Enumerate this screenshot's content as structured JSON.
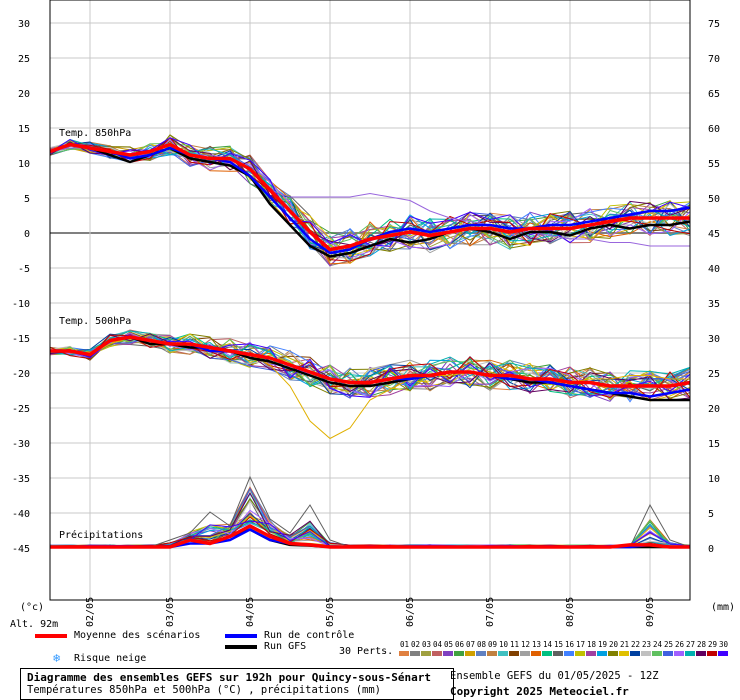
{
  "chart_data": {
    "type": "line",
    "left_ticks": [
      "30",
      "25",
      "20",
      "15",
      "10",
      "5",
      "0",
      "-5",
      "-10",
      "-15",
      "-20",
      "-25",
      "-30",
      "-35",
      "-40",
      "-45"
    ],
    "right_ticks": [
      "75",
      "70",
      "65",
      "60",
      "55",
      "50",
      "45",
      "40",
      "35",
      "30",
      "25",
      "20",
      "15",
      "10",
      "5",
      "0"
    ],
    "x_ticks": [
      "02/05",
      "03/05",
      "04/05",
      "05/05",
      "06/05",
      "07/05",
      "08/05",
      "09/05"
    ],
    "left_unit": "(°c)",
    "right_unit": "(mm)",
    "altitude": "Alt. 92m",
    "panel_labels": {
      "t850": "Temp. 850hPa",
      "t500": "Temp. 500hPa",
      "precip": "Précipitations"
    },
    "x_hours": [
      0,
      6,
      12,
      18,
      24,
      30,
      36,
      42,
      48,
      54,
      60,
      66,
      72,
      78,
      84,
      90,
      96,
      102,
      108,
      114,
      120,
      126,
      132,
      138,
      144,
      150,
      156,
      162,
      168,
      174,
      180,
      186,
      192
    ],
    "t850_mean": [
      11.5,
      12.5,
      12,
      11.5,
      11,
      11.5,
      12.5,
      11,
      10.5,
      10.5,
      9,
      6,
      3,
      0,
      -2.5,
      -2,
      -1,
      -0.5,
      0,
      -0.5,
      0,
      0.5,
      0.5,
      0,
      0.5,
      0.5,
      0.5,
      1,
      1.5,
      2,
      2,
      2,
      2
    ],
    "t850_control": [
      11.5,
      12.5,
      12,
      11.5,
      10.5,
      11,
      12,
      11,
      10.5,
      10,
      8,
      5,
      2,
      -1,
      -3,
      -2.5,
      -1,
      0,
      0.5,
      0,
      0.5,
      1,
      1,
      0.5,
      0.5,
      1,
      1,
      1.5,
      2,
      2.5,
      3,
      3,
      3.5
    ],
    "t850_gfs": [
      11.5,
      12.5,
      12,
      11,
      10,
      11,
      12,
      10.5,
      10,
      9.5,
      8,
      4,
      1,
      -2,
      -3.5,
      -3,
      -2,
      -1,
      -1.5,
      -1,
      0,
      0.5,
      0,
      -1,
      0,
      0,
      -0.5,
      0.5,
      1,
      0.5,
      1,
      1,
      1.5
    ],
    "t500_mean": [
      -17,
      -17,
      -17.5,
      -15.5,
      -15,
      -15.5,
      -16,
      -16,
      -16.5,
      -17,
      -17.5,
      -18,
      -19,
      -20,
      -21,
      -21.5,
      -21.5,
      -21,
      -20.5,
      -20.5,
      -20,
      -20,
      -20.5,
      -20.5,
      -21,
      -21,
      -21.5,
      -21.5,
      -22,
      -22,
      -22,
      -22,
      -21.5
    ],
    "t500_control": [
      -17,
      -17,
      -17.5,
      -15.5,
      -15,
      -15.5,
      -16,
      -16,
      -17,
      -17,
      -17.5,
      -18,
      -19,
      -20,
      -21,
      -21.5,
      -21.5,
      -21,
      -21,
      -20.5,
      -20,
      -20,
      -20.5,
      -21,
      -21,
      -21.5,
      -22,
      -22.5,
      -23,
      -23,
      -23.5,
      -23,
      -22.5
    ],
    "t500_gfs": [
      -17,
      -17,
      -17.5,
      -15.5,
      -15,
      -16,
      -16,
      -16.5,
      -16.5,
      -17,
      -18,
      -18.5,
      -19.5,
      -20.5,
      -21.5,
      -22,
      -22,
      -21.5,
      -21,
      -20.5,
      -20,
      -20,
      -20.5,
      -21,
      -21.5,
      -21.5,
      -22,
      -22.5,
      -23,
      -23.5,
      -24,
      -24,
      -24
    ],
    "precip_mean_mm": [
      0,
      0,
      0,
      0,
      0,
      0,
      0,
      1,
      0.5,
      1.5,
      3,
      1.5,
      0.5,
      0.3,
      0,
      0,
      0,
      0,
      0,
      0,
      0,
      0,
      0,
      0,
      0,
      0,
      0,
      0,
      0,
      0.3,
      0.3,
      0,
      0
    ],
    "precip_control_mm": [
      0,
      0,
      0,
      0,
      0,
      0,
      0,
      0.5,
      0.5,
      1,
      2.5,
      1,
      0.5,
      0.3,
      0,
      0,
      0,
      0,
      0,
      0,
      0,
      0,
      0,
      0,
      0,
      0,
      0,
      0,
      0,
      0,
      0.3,
      0,
      0
    ],
    "precip_gfs_mm": [
      0,
      0,
      0,
      0,
      0,
      0,
      0,
      1,
      0.5,
      1.5,
      2.5,
      1,
      0.3,
      0.2,
      0,
      0,
      0,
      0,
      0,
      0,
      0,
      0,
      0,
      0,
      0,
      0,
      0,
      0,
      0,
      0,
      0,
      0,
      0
    ],
    "t500_outlier_yellow": [
      -17,
      -17,
      -17.5,
      -16,
      -15,
      -15.5,
      -16,
      -16,
      -16.5,
      -17,
      -17.5,
      -19,
      -22,
      -27,
      -29.5,
      -28,
      -24,
      -22.5,
      -21,
      -20.5,
      -20.5,
      -20,
      -20.5,
      -21,
      -21,
      -21.5,
      -21.5,
      -21,
      -21,
      -20.5,
      -20.5,
      -21,
      -21
    ],
    "t850_outlier_purple": [
      11.5,
      12,
      12,
      11.5,
      11,
      11,
      12,
      11,
      11,
      10.5,
      9,
      6,
      5,
      5,
      5,
      5,
      5.5,
      5,
      4.5,
      3,
      2,
      1.5,
      1,
      0.5,
      0,
      -0.5,
      -1,
      -1,
      -1.5,
      -1.5,
      -2,
      -2,
      -2
    ],
    "precip_peak_mm": [
      0,
      0,
      0,
      0,
      0,
      0,
      1,
      2,
      5,
      3,
      10,
      4,
      2,
      6,
      1,
      0,
      0,
      0,
      0,
      0,
      0,
      0,
      0,
      0,
      0,
      0,
      0,
      0,
      0,
      0,
      6,
      1,
      0
    ]
  },
  "legend": {
    "mean_label": "Moyenne des scénarios",
    "control_label": "Run de contrôle",
    "gfs_label": "Run GFS",
    "snow_label": "Risque neige",
    "perts_label": "30 Perts.",
    "mean_color": "#ff0000",
    "control_color": "#0000ff",
    "gfs_color": "#000000",
    "member_numbers": [
      "01",
      "02",
      "03",
      "04",
      "05",
      "06",
      "07",
      "08",
      "09",
      "10",
      "11",
      "12",
      "13",
      "14",
      "15",
      "16",
      "17",
      "18",
      "19",
      "20",
      "21",
      "22",
      "23",
      "24",
      "25",
      "26",
      "27",
      "28",
      "29",
      "30"
    ],
    "member_colors": [
      "#e08040",
      "#808080",
      "#a0a040",
      "#c06060",
      "#8040c0",
      "#40a040",
      "#d0a000",
      "#6080c0",
      "#c08040",
      "#40c0c0",
      "#804000",
      "#a0a0a0",
      "#e06000",
      "#00c080",
      "#606060",
      "#4080ff",
      "#c0c000",
      "#a040a0",
      "#00a0e0",
      "#808000",
      "#e0c000",
      "#0040a0",
      "#c0c0c0",
      "#60c060",
      "#4060e0",
      "#a060ff",
      "#00b0b0",
      "#600060",
      "#c00000",
      "#4000ff"
    ]
  },
  "footer": {
    "title": "Diagramme des ensembles GEFS sur 192h pour Quincy-sous-Sénart",
    "subtitle": "Températures 850hPa et 500hPa (°C) , précipitations (mm)",
    "run_info": "Ensemble GEFS du 01/05/2025 - 12Z",
    "copyright": "Copyright 2025 Meteociel.fr"
  }
}
